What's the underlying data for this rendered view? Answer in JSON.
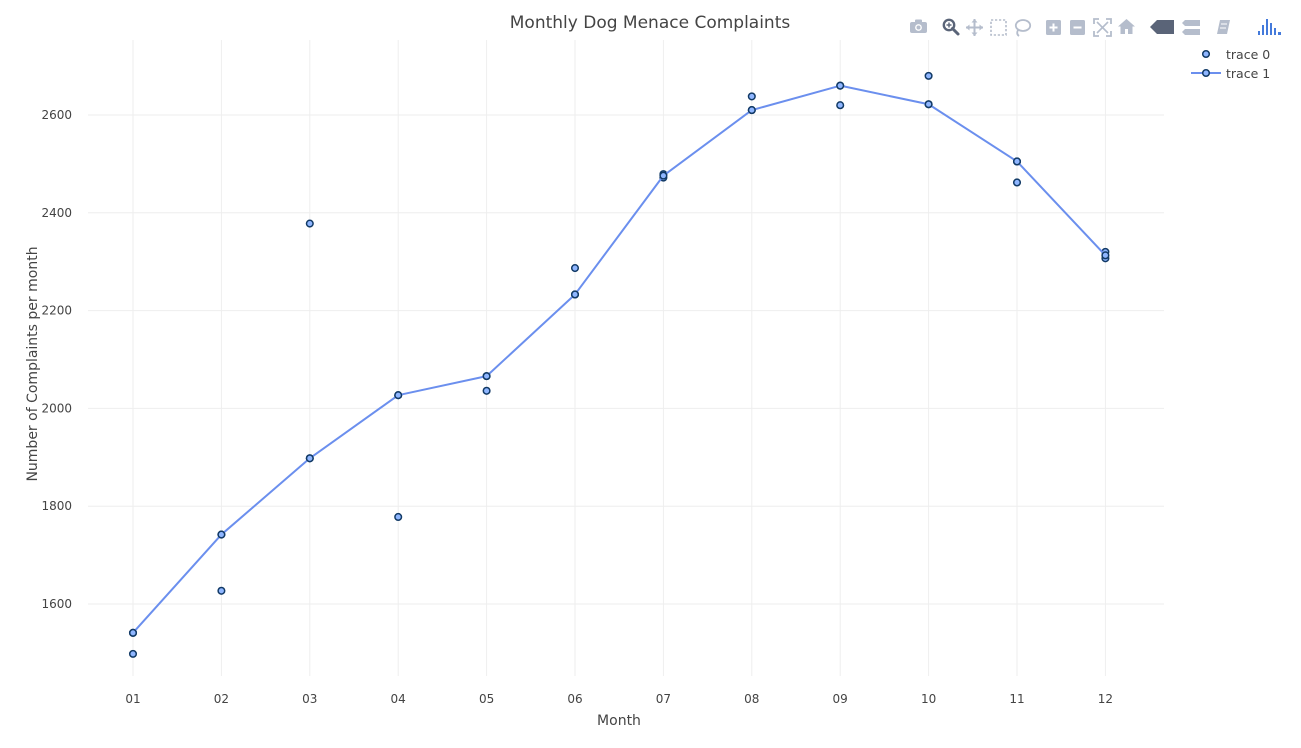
{
  "chart_data": {
    "type": "scatter",
    "title": "Monthly Dog Menace Complaints",
    "xlabel": "Month",
    "ylabel": "Number of Complaints per month",
    "categories": [
      "01",
      "02",
      "03",
      "04",
      "05",
      "06",
      "07",
      "08",
      "09",
      "10",
      "11",
      "12"
    ],
    "yticks": [
      1600,
      1800,
      2000,
      2200,
      2400,
      2600
    ],
    "ylim": [
      1440,
      2760
    ],
    "grid": true,
    "legend_position": "top-right",
    "series": [
      {
        "name": "trace 0",
        "mode": "markers",
        "points": [
          {
            "x": "01",
            "y": 1541
          },
          {
            "x": "01",
            "y": 1498
          },
          {
            "x": "02",
            "y": 1742
          },
          {
            "x": "02",
            "y": 1627
          },
          {
            "x": "03",
            "y": 1898
          },
          {
            "x": "03",
            "y": 2378
          },
          {
            "x": "04",
            "y": 2027
          },
          {
            "x": "04",
            "y": 1778
          },
          {
            "x": "05",
            "y": 2066
          },
          {
            "x": "05",
            "y": 2036
          },
          {
            "x": "06",
            "y": 2287
          },
          {
            "x": "06",
            "y": 2233
          },
          {
            "x": "07",
            "y": 2479
          },
          {
            "x": "07",
            "y": 2472
          },
          {
            "x": "08",
            "y": 2638
          },
          {
            "x": "08",
            "y": 2610
          },
          {
            "x": "09",
            "y": 2660
          },
          {
            "x": "09",
            "y": 2620
          },
          {
            "x": "10",
            "y": 2680
          },
          {
            "x": "10",
            "y": 2622
          },
          {
            "x": "11",
            "y": 2505
          },
          {
            "x": "11",
            "y": 2462
          },
          {
            "x": "12",
            "y": 2320
          },
          {
            "x": "12",
            "y": 2307
          }
        ]
      },
      {
        "name": "trace 1",
        "mode": "lines+markers",
        "points": [
          {
            "x": "01",
            "y": 1541
          },
          {
            "x": "02",
            "y": 1742
          },
          {
            "x": "03",
            "y": 1898
          },
          {
            "x": "04",
            "y": 2027
          },
          {
            "x": "05",
            "y": 2066
          },
          {
            "x": "06",
            "y": 2233
          },
          {
            "x": "07",
            "y": 2476
          },
          {
            "x": "08",
            "y": 2610
          },
          {
            "x": "09",
            "y": 2660
          },
          {
            "x": "10",
            "y": 2622
          },
          {
            "x": "11",
            "y": 2505
          },
          {
            "x": "12",
            "y": 2313
          }
        ]
      }
    ]
  },
  "colors": {
    "line": "#6b8fee",
    "marker_fill": "#8fb6ff",
    "marker_stroke": "#123a66",
    "grid": "#eeeeee",
    "text": "#444444",
    "modebar": "#b5bdcc",
    "modebar_active": "#5a6478",
    "logo": "#447adb"
  },
  "modebar": {
    "buttons": [
      {
        "name": "camera-icon"
      },
      {
        "name": "zoom-icon"
      },
      {
        "name": "pan-icon"
      },
      {
        "name": "box-select-icon"
      },
      {
        "name": "lasso-select-icon"
      },
      {
        "name": "zoom-in-icon"
      },
      {
        "name": "zoom-out-icon"
      },
      {
        "name": "autoscale-icon"
      },
      {
        "name": "reset-axes-icon"
      },
      {
        "name": "spike-lines-icon"
      },
      {
        "name": "hover-compare-icon"
      },
      {
        "name": "edit-chart-icon"
      },
      {
        "name": "plotly-logo-icon"
      }
    ]
  }
}
